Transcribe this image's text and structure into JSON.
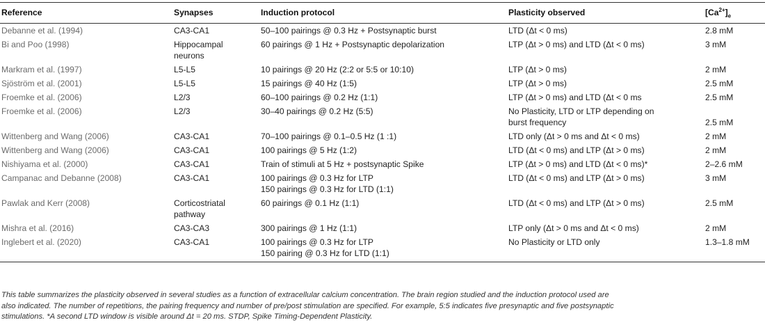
{
  "table": {
    "headers": {
      "reference": "Reference",
      "synapses": "Synapses",
      "induction": "Induction protocol",
      "plasticity": "Plasticity observed",
      "calcium_main": "[Ca",
      "calcium_sup": "2+",
      "calcium_tail": "]",
      "calcium_sub": "e"
    },
    "rows": [
      {
        "reference": "Debanne et al. (1994)",
        "synapses": [
          "CA3-CA1"
        ],
        "induction": [
          "50–100 pairings @ 0.3 Hz + Postsynaptic burst"
        ],
        "plasticity": [
          "LTD (Δt < 0 ms)"
        ],
        "calcium": "2.8 mM"
      },
      {
        "reference": "Bi and Poo (1998)",
        "synapses": [
          "Hippocampal",
          "neurons"
        ],
        "induction": [
          "60 pairings @ 1 Hz + Postsynaptic depolarization"
        ],
        "plasticity": [
          "LTP (Δt > 0 ms) and LTD (Δt < 0 ms)"
        ],
        "calcium": "3 mM"
      },
      {
        "reference": "Markram et al. (1997)",
        "synapses": [
          "L5-L5"
        ],
        "induction": [
          "10 pairings @ 20 Hz (2:2 or 5:5 or 10:10)"
        ],
        "plasticity": [
          "LTP (Δt > 0 ms)"
        ],
        "calcium": "2 mM"
      },
      {
        "reference": "Sjöström et al. (2001)",
        "synapses": [
          "L5-L5"
        ],
        "induction": [
          "15 pairings @ 40 Hz (1:5)"
        ],
        "plasticity": [
          "LTP (Δt > 0 ms)"
        ],
        "calcium": "2.5 mM"
      },
      {
        "reference": "Froemke et al. (2006)",
        "synapses": [
          "L2/3"
        ],
        "induction": [
          "60–100 pairings @ 0.2 Hz (1:1)"
        ],
        "plasticity": [
          "LTP (Δt > 0 ms) and LTD (Δt < 0 ms"
        ],
        "calcium": "2.5 mM"
      },
      {
        "reference": "Froemke et al. (2006)",
        "synapses": [
          "L2/3"
        ],
        "induction": [
          "30–40 pairings @ 0.2 Hz (5:5)"
        ],
        "plasticity": [
          "No Plasticity, LTD or LTP depending on",
          "burst frequency"
        ],
        "calcium": "2.5 mM",
        "calcium_bottom": true
      },
      {
        "reference": "Wittenberg and Wang (2006)",
        "synapses": [
          "CA3-CA1"
        ],
        "induction": [
          "70–100 pairings @ 0.1–0.5 Hz (1 :1)"
        ],
        "plasticity": [
          "LTD only (Δt > 0 ms and Δt < 0 ms)"
        ],
        "calcium": "2 mM"
      },
      {
        "reference": "Wittenberg and Wang (2006)",
        "synapses": [
          "CA3-CA1"
        ],
        "induction": [
          "100 pairings @ 5 Hz (1:2)"
        ],
        "plasticity": [
          "LTD (Δt < 0 ms) and LTP (Δt > 0 ms)"
        ],
        "calcium": "2 mM"
      },
      {
        "reference": "Nishiyama et al. (2000)",
        "synapses": [
          "CA3-CA1"
        ],
        "induction": [
          "Train of stimuli at 5 Hz + postsynaptic Spike"
        ],
        "plasticity": [
          "LTP (Δt > 0 ms) and LTD (Δt < 0 ms)*"
        ],
        "calcium": "2–2.6 mM"
      },
      {
        "reference": "Campanac and Debanne (2008)",
        "synapses": [
          "CA3-CA1"
        ],
        "induction": [
          "100 pairings @ 0.3 Hz for LTP",
          "150 pairings @ 0.3 Hz for LTD (1:1)"
        ],
        "plasticity": [
          "LTD (Δt < 0 ms) and LTP (Δt > 0 ms)"
        ],
        "calcium": "3 mM"
      },
      {
        "reference": "Pawlak and Kerr (2008)",
        "synapses": [
          "Corticostriatal",
          "pathway"
        ],
        "induction": [
          "60 pairings @ 0.1 Hz (1:1)"
        ],
        "plasticity": [
          "LTD (Δt < 0 ms) and LTP (Δt > 0 ms)"
        ],
        "calcium": "2.5 mM"
      },
      {
        "reference": "Mishra et al. (2016)",
        "synapses": [
          "CA3-CA3"
        ],
        "induction": [
          "300 pairings @ 1 Hz (1:1)"
        ],
        "plasticity": [
          "LTP only (Δt > 0 ms and Δt < 0 ms)"
        ],
        "calcium": "2 mM"
      },
      {
        "reference": "Inglebert et al. (2020)",
        "synapses": [
          "CA3-CA1"
        ],
        "induction": [
          "100 pairings @ 0.3 Hz for LTP",
          "150 pairing @ 0.3 Hz for LTD (1:1)"
        ],
        "plasticity": [
          "No Plasticity or LTD only"
        ],
        "calcium": "1.3–1.8 mM"
      }
    ]
  },
  "footnote": {
    "line1": "This table summarizes the plasticity observed in several studies as a function of extracellular calcium concentration. The brain region studied and the induction protocol used are",
    "line2": "also indicated. The number of repetitions, the pairing frequency and number of pre/post stimulation are specified. For example, 5:5 indicates five presynaptic and five postsynaptic",
    "line3": "stimulations. *A second LTD window is visible around Δt = 20 ms. STDP, Spike Timing-Dependent Plasticity."
  }
}
